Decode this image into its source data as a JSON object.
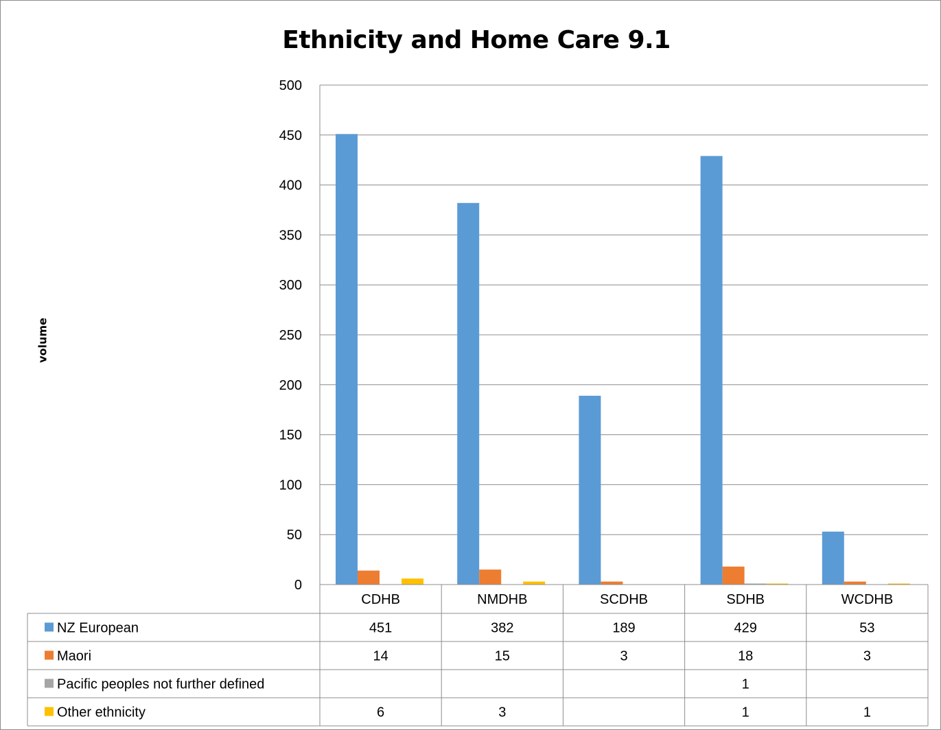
{
  "chart_data": {
    "type": "bar",
    "title": "Ethnicity and Home Care 9.1",
    "ylabel": "volume",
    "xlabel": "",
    "ylim": [
      0,
      500
    ],
    "yticks": [
      0,
      50,
      100,
      150,
      200,
      250,
      300,
      350,
      400,
      450,
      500
    ],
    "categories": [
      "CDHB",
      "NMDHB",
      "SCDHB",
      "SDHB",
      "WCDHB"
    ],
    "grid": "horizontal",
    "legend_placement": "data-table-bottom",
    "series": [
      {
        "name": "NZ European",
        "color": "#5b9bd5",
        "values": [
          451,
          382,
          189,
          429,
          53
        ],
        "labels": [
          "451",
          "382",
          "189",
          "429",
          "53"
        ]
      },
      {
        "name": "Maori",
        "color": "#ed7d31",
        "values": [
          14,
          15,
          3,
          18,
          3
        ],
        "labels": [
          "14",
          "15",
          "3",
          "18",
          "3"
        ]
      },
      {
        "name": "Pacific peoples not further defined",
        "color": "#a5a5a5",
        "values": [
          0,
          0,
          0,
          1,
          0
        ],
        "labels": [
          "",
          "",
          "",
          "1",
          ""
        ]
      },
      {
        "name": "Other ethnicity",
        "color": "#ffc000",
        "values": [
          6,
          3,
          0,
          1,
          1
        ],
        "labels": [
          "6",
          "3",
          "",
          "1",
          "1"
        ]
      }
    ]
  }
}
